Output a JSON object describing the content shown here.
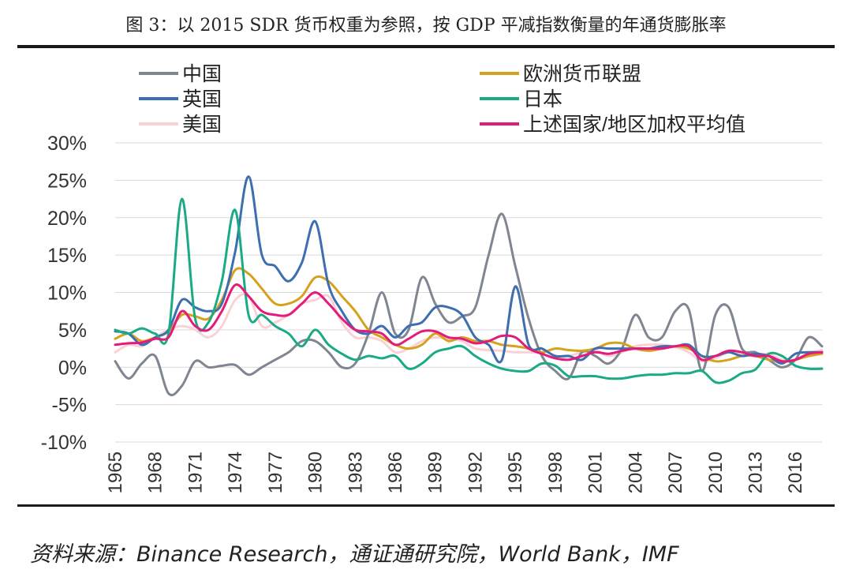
{
  "title": "图 3：以 2015 SDR 货币权重为参照，按 GDP 平减指数衡量的年通货膨胀率",
  "source": "资料来源：Binance Research，通证通研究院，World Bank，IMF",
  "chart_data": {
    "type": "line",
    "title": "",
    "xlabel": "",
    "ylabel": "",
    "ylim": [
      -10,
      30
    ],
    "xlim": [
      1965,
      2018
    ],
    "y_ticks": [
      "-10%",
      "-5%",
      "0%",
      "5%",
      "10%",
      "15%",
      "20%",
      "25%",
      "30%"
    ],
    "y_tick_values": [
      -10,
      -5,
      0,
      5,
      10,
      15,
      20,
      25,
      30
    ],
    "x_ticks": [
      "1965",
      "1968",
      "1971",
      "1974",
      "1977",
      "1980",
      "1983",
      "1986",
      "1989",
      "1992",
      "1995",
      "1998",
      "2001",
      "2004",
      "2007",
      "2010",
      "2013",
      "2016"
    ],
    "grid": true,
    "legend_position": "top",
    "x": [
      1965,
      1966,
      1967,
      1968,
      1969,
      1970,
      1971,
      1972,
      1973,
      1974,
      1975,
      1976,
      1977,
      1978,
      1979,
      1980,
      1981,
      1982,
      1983,
      1984,
      1985,
      1986,
      1987,
      1988,
      1989,
      1990,
      1991,
      1992,
      1993,
      1994,
      1995,
      1996,
      1997,
      1998,
      1999,
      2000,
      2001,
      2002,
      2003,
      2004,
      2005,
      2006,
      2007,
      2008,
      2009,
      2010,
      2011,
      2012,
      2013,
      2014,
      2015,
      2016,
      2017,
      2018
    ],
    "series": [
      {
        "name": "中国",
        "color": "#7f8591",
        "values": [
          0.8,
          -1.5,
          0.5,
          1.5,
          -3.5,
          -2.5,
          0.8,
          0.0,
          0.2,
          0.3,
          -1.0,
          0.0,
          1.0,
          2.0,
          3.5,
          3.5,
          2.0,
          0.0,
          0.5,
          4.5,
          10.0,
          4.5,
          5.0,
          12.0,
          8.5,
          6.0,
          6.8,
          8.0,
          15.0,
          20.5,
          13.5,
          6.5,
          1.5,
          -0.5,
          -1.5,
          2.0,
          1.5,
          0.5,
          2.5,
          7.0,
          4.0,
          4.0,
          7.5,
          7.8,
          -0.5,
          7.0,
          8.0,
          2.5,
          2.0,
          1.0,
          0.0,
          1.0,
          4.0,
          2.8
        ]
      },
      {
        "name": "欧洲货币联盟",
        "color": "#d6a21e",
        "values": [
          3.8,
          4.5,
          3.5,
          4.0,
          4.8,
          7.0,
          6.8,
          6.5,
          9.0,
          13.0,
          12.5,
          10.5,
          8.5,
          8.5,
          9.5,
          12.0,
          11.5,
          9.5,
          7.5,
          5.0,
          4.0,
          3.0,
          2.5,
          3.0,
          4.5,
          3.5,
          4.0,
          3.5,
          3.5,
          3.0,
          2.8,
          2.5,
          2.0,
          2.5,
          2.3,
          2.2,
          2.5,
          3.2,
          3.2,
          2.5,
          2.2,
          2.5,
          2.8,
          2.5,
          1.5,
          0.8,
          1.0,
          1.5,
          1.5,
          1.0,
          0.8,
          1.0,
          1.5,
          1.8
        ]
      },
      {
        "name": "英国",
        "color": "#3d6eb0",
        "values": [
          4.8,
          4.5,
          3.0,
          4.0,
          5.0,
          9.0,
          8.0,
          7.5,
          8.5,
          15.5,
          25.5,
          15.0,
          13.5,
          11.5,
          14.0,
          19.5,
          11.0,
          7.5,
          5.0,
          4.5,
          5.5,
          4.0,
          5.5,
          6.0,
          8.0,
          8.0,
          7.0,
          4.0,
          3.0,
          1.0,
          10.8,
          3.0,
          2.5,
          1.5,
          1.5,
          1.0,
          2.5,
          2.5,
          2.5,
          2.5,
          2.5,
          2.8,
          2.8,
          3.0,
          1.5,
          1.5,
          2.0,
          1.5,
          1.8,
          1.5,
          0.5,
          1.8,
          2.0,
          2.0
        ]
      },
      {
        "name": "日本",
        "color": "#1aaa86",
        "values": [
          5.0,
          4.5,
          5.2,
          4.5,
          4.5,
          22.5,
          6.5,
          6.0,
          11.5,
          21.0,
          7.0,
          7.0,
          5.5,
          4.5,
          2.8,
          5.0,
          3.0,
          1.8,
          1.0,
          1.5,
          1.2,
          1.5,
          -0.2,
          0.5,
          2.0,
          2.5,
          2.8,
          1.5,
          0.5,
          -0.2,
          -0.5,
          -0.5,
          0.5,
          0.2,
          -1.2,
          -1.2,
          -1.2,
          -1.5,
          -1.5,
          -1.2,
          -1.0,
          -1.0,
          -0.8,
          -0.8,
          -0.5,
          -2.0,
          -1.8,
          -0.8,
          -0.3,
          1.8,
          1.5,
          0.2,
          -0.2,
          -0.2
        ]
      },
      {
        "name": "美国",
        "color": "#f9d2d6",
        "values": [
          2.0,
          3.0,
          2.8,
          4.0,
          5.0,
          5.5,
          5.0,
          4.0,
          5.5,
          9.0,
          9.5,
          5.5,
          6.0,
          7.0,
          8.5,
          9.0,
          9.5,
          6.0,
          4.0,
          4.0,
          3.5,
          2.0,
          2.5,
          3.5,
          4.0,
          3.8,
          3.5,
          2.5,
          2.3,
          2.2,
          2.0,
          2.0,
          1.8,
          1.2,
          1.5,
          2.0,
          2.3,
          1.5,
          2.0,
          2.8,
          3.0,
          3.0,
          2.7,
          2.0,
          0.8,
          1.2,
          2.0,
          1.8,
          1.5,
          1.8,
          1.0,
          1.0,
          1.8,
          2.3
        ]
      },
      {
        "name": "上述国家/地区加权平均值",
        "color": "#e31b7a",
        "values": [
          3.0,
          3.2,
          3.3,
          3.8,
          4.0,
          7.5,
          5.5,
          5.0,
          7.5,
          11.0,
          9.5,
          7.5,
          7.0,
          7.0,
          8.5,
          10.0,
          8.5,
          6.5,
          5.0,
          4.8,
          4.5,
          3.0,
          3.8,
          4.8,
          4.8,
          4.0,
          3.8,
          3.2,
          3.5,
          4.2,
          4.0,
          2.5,
          1.8,
          1.2,
          1.0,
          1.5,
          2.0,
          1.8,
          2.2,
          2.5,
          2.5,
          2.5,
          2.8,
          2.8,
          1.0,
          1.5,
          2.2,
          2.0,
          1.5,
          1.5,
          0.8,
          1.0,
          1.8,
          2.0
        ]
      }
    ]
  }
}
